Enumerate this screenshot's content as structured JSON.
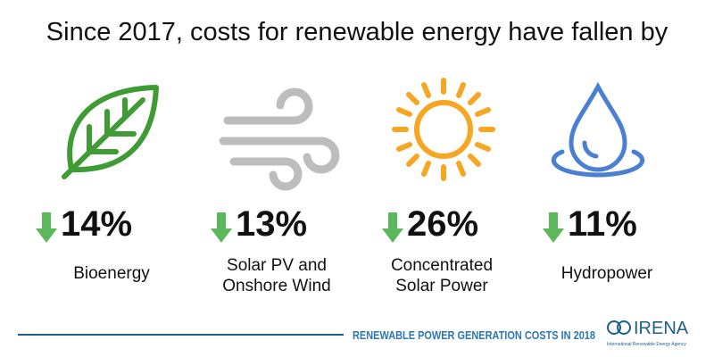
{
  "header": {
    "title": "Since 2017, costs for renewable energy have fallen by"
  },
  "items": [
    {
      "change": "14%",
      "label_lines": [
        "Bioenergy"
      ]
    },
    {
      "change": "13%",
      "label_lines": [
        "Solar PV and",
        "Onshore Wind"
      ]
    },
    {
      "change": "26%",
      "label_lines": [
        "Concentrated",
        "Solar Power"
      ]
    },
    {
      "change": "11%",
      "label_lines": [
        "Hydropower"
      ]
    }
  ],
  "footer": {
    "caption": "RENEWABLE POWER GENERATION COSTS IN 2018",
    "logo": "IRENA",
    "logo_subtitle": "International Renewable Energy Agency"
  }
}
